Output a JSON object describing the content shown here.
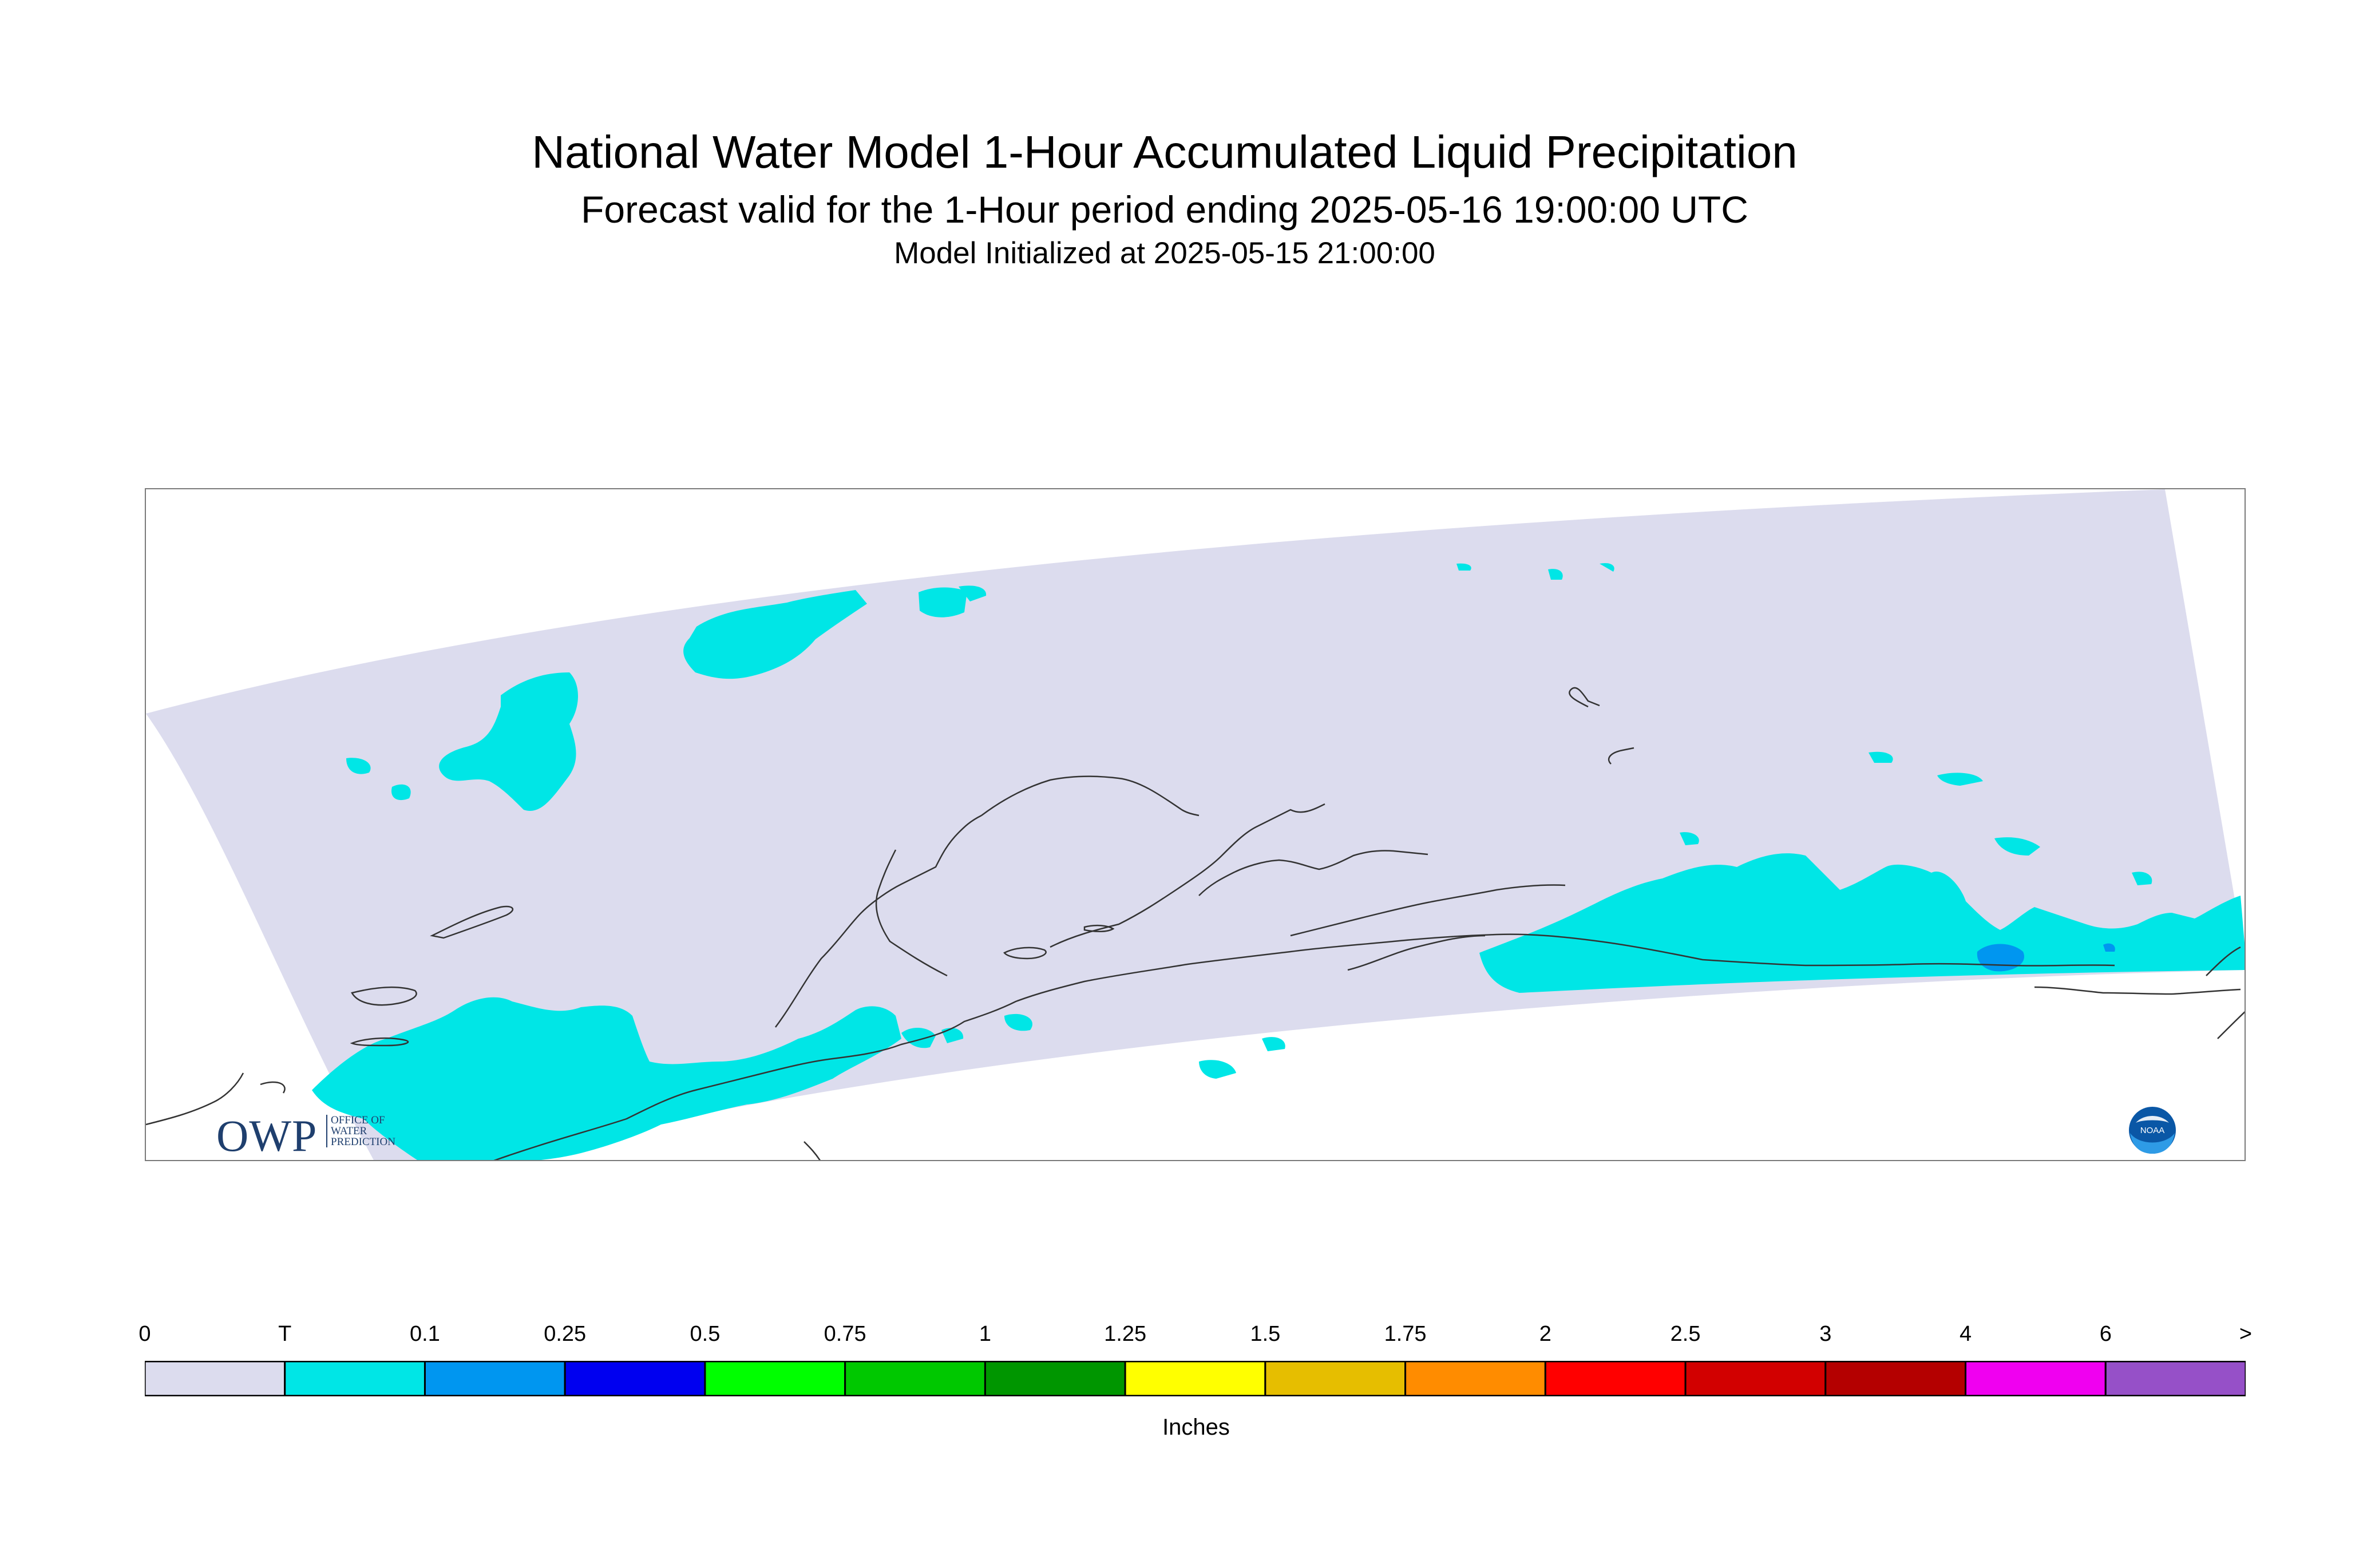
{
  "header": {
    "title": "National Water Model 1-Hour Accumulated Liquid Precipitation",
    "subtitle": "Forecast valid for the 1-Hour period ending 2025-05-16 19:00:00 UTC",
    "initialized": "Model Initialized at 2025-05-15 21:00:00"
  },
  "colors": {
    "domain_fill": "#dcdcee",
    "coastline": "#333333",
    "frame": "#7a7a7a"
  },
  "logos": {
    "owp_letters": "OWP",
    "owp_line1": "OFFICE OF",
    "owp_line2": "WATER",
    "owp_line3": "PREDICTION",
    "noaa_text": "NOAA"
  },
  "legend": {
    "units": "Inches",
    "tick_labels": [
      "0",
      "T",
      "0.1",
      "0.25",
      "0.5",
      "0.75",
      "1",
      "1.25",
      "1.5",
      "1.75",
      "2",
      "2.5",
      "3",
      "4",
      "6",
      ">"
    ],
    "bins": [
      {
        "label": "0-T",
        "color": "#dcdcee"
      },
      {
        "label": "T-0.1",
        "color": "#00e6e6"
      },
      {
        "label": "0.1-0.25",
        "color": "#0096f0"
      },
      {
        "label": "0.25-0.5",
        "color": "#0000f0"
      },
      {
        "label": "0.5-0.75",
        "color": "#00ff00"
      },
      {
        "label": "0.75-1",
        "color": "#00c800"
      },
      {
        "label": "1-1.25",
        "color": "#009600"
      },
      {
        "label": "1.25-1.5",
        "color": "#ffff00"
      },
      {
        "label": "1.5-1.75",
        "color": "#e6be00"
      },
      {
        "label": "1.75-2",
        "color": "#ff8c00"
      },
      {
        "label": "2-2.5",
        "color": "#ff0000"
      },
      {
        "label": "2.5-3",
        "color": "#d20000"
      },
      {
        "label": "3-4",
        "color": "#b40000"
      },
      {
        "label": "4-6",
        "color": "#f000f0"
      },
      {
        "label": "6->",
        "color": "#9650c8"
      }
    ]
  }
}
